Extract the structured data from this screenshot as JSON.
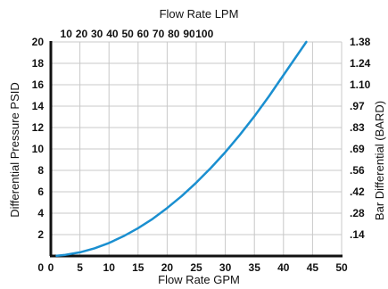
{
  "chart_data": {
    "type": "line",
    "title": "",
    "top_axis_title": "Flow Rate LPM",
    "top_ticks": [
      "10",
      "20",
      "30",
      "40",
      "50",
      "60",
      "70",
      "80",
      "90",
      "100"
    ],
    "xlabel": "Flow Rate GPM",
    "x_ticks": [
      "0",
      "5",
      "10",
      "15",
      "20",
      "25",
      "30",
      "35",
      "40",
      "45",
      "50"
    ],
    "xlim": [
      0,
      50
    ],
    "ylabel": "Differential Pressure PSID",
    "y_ticks": [
      "2",
      "4",
      "6",
      "8",
      "10",
      "12",
      "14",
      "16",
      "18",
      "20"
    ],
    "ylim": [
      0,
      20
    ],
    "right_axis_title": "Bar Differential (BARD)",
    "right_ticks": [
      ".14",
      ".28",
      ".42",
      ".56",
      ".69",
      ".83",
      ".97",
      "1.10",
      "1.24",
      "1.38"
    ],
    "grid": true,
    "curve_color": "#1a8fd0",
    "series": [
      {
        "x": [
          1,
          2.5,
          5,
          7.5,
          10,
          12.5,
          15,
          17.5,
          20,
          22.5,
          25,
          27.5,
          30,
          32.5,
          35,
          37.5,
          39.5
        ],
        "y": [
          0.02,
          0.11,
          0.34,
          0.72,
          1.22,
          1.85,
          2.6,
          3.47,
          4.48,
          5.6,
          6.85,
          8.22,
          9.7,
          11.32,
          13.05,
          14.92,
          16.5
        ]
      }
    ]
  }
}
